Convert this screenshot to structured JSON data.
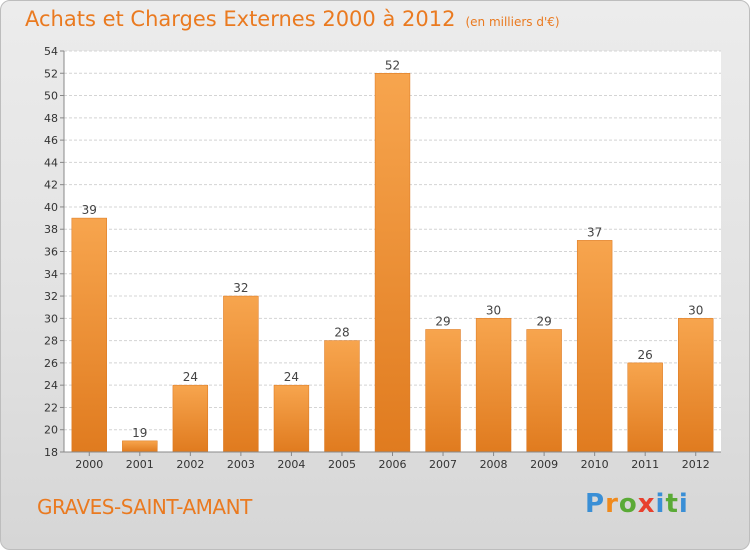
{
  "chart_data": {
    "type": "bar",
    "title": "Achats et Charges Externes 2000 à 2012",
    "unit_note": "(en milliers d'€)",
    "categories": [
      "2000",
      "2001",
      "2002",
      "2003",
      "2004",
      "2005",
      "2006",
      "2007",
      "2008",
      "2009",
      "2010",
      "2011",
      "2012"
    ],
    "values": [
      39,
      19,
      24,
      32,
      24,
      28,
      52,
      29,
      30,
      29,
      37,
      26,
      30
    ],
    "ylim": [
      18,
      54
    ],
    "yticks": [
      18,
      20,
      22,
      24,
      26,
      28,
      30,
      32,
      34,
      36,
      38,
      40,
      42,
      44,
      46,
      48,
      50,
      52,
      54
    ],
    "grid": true,
    "xlabel": "",
    "ylabel": "",
    "bar_color_light": "#f7a54e",
    "bar_color_dark": "#e07b1f"
  },
  "commune_name": "GRAVES-SAINT-AMANT",
  "brand": {
    "name": "Proxiti",
    "letter_colors": [
      "#3a8fd6",
      "#f08a1c",
      "#5aaa36",
      "#e8402e",
      "#3a8fd6",
      "#5aaa36"
    ]
  }
}
